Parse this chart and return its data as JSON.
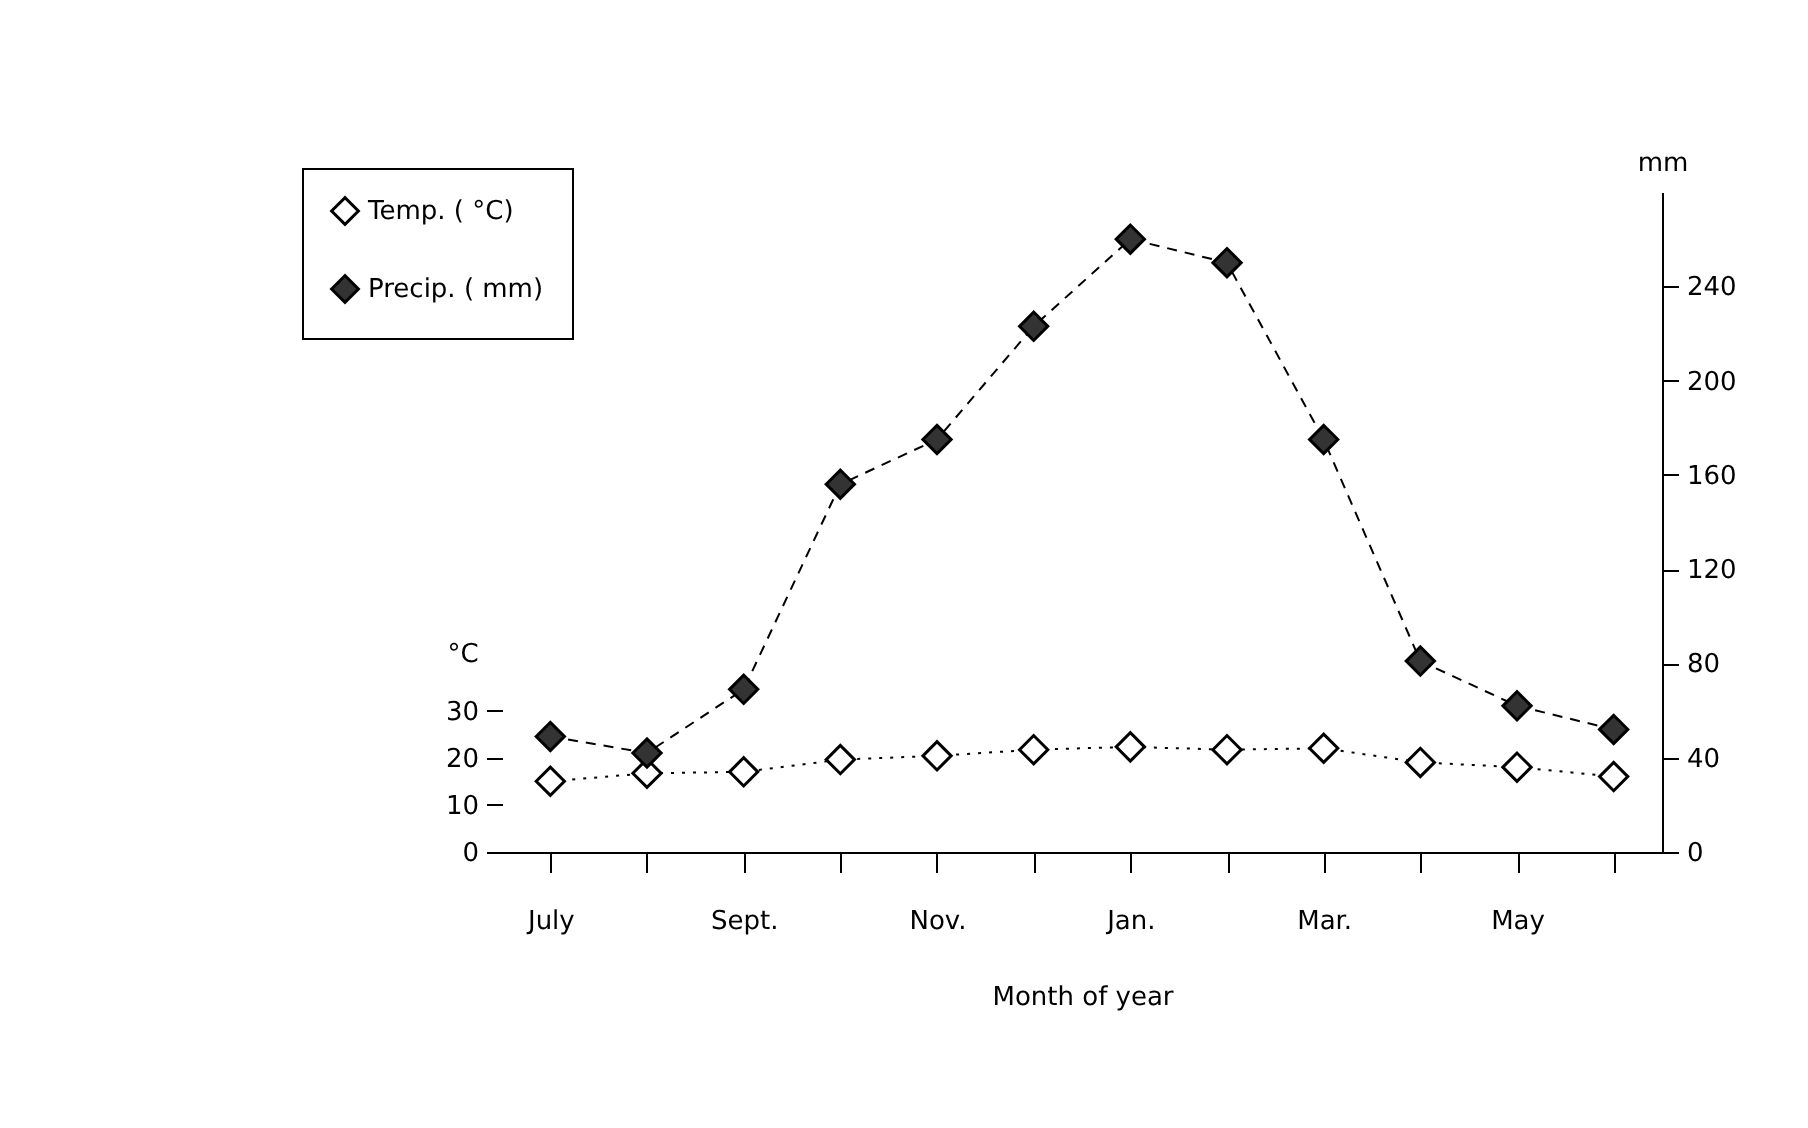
{
  "chart_data": {
    "type": "line",
    "xlabel": "Month of year",
    "ylabel": "°C",
    "y2label": "mm",
    "categories": [
      "July",
      null,
      "Sept.",
      null,
      "Nov.",
      null,
      "Jan.",
      null,
      "Mar.",
      null,
      "May",
      null
    ],
    "series": [
      {
        "name": "Temp. ( °C)",
        "color": "#ffffff",
        "line_style": "dotted",
        "values": [
          15,
          16.7,
          17,
          19.6,
          20.4,
          21.7,
          22.3,
          21.7,
          22,
          19,
          18,
          16
        ]
      },
      {
        "name": "Precip. ( mm)",
        "color": "#333333",
        "line_style": "dashed",
        "axis": "y2",
        "values": [
          49,
          42,
          69,
          156,
          175,
          223,
          260,
          250,
          175,
          81,
          62,
          52
        ]
      }
    ],
    "ylim": [
      0,
      140
    ],
    "yticks": [
      0,
      10,
      20,
      30
    ],
    "y2lim": [
      0,
      280
    ],
    "y2ticks": [
      0,
      40,
      80,
      120,
      160,
      200,
      240
    ],
    "marker": "diamond",
    "legend": "top left",
    "grid": false
  }
}
